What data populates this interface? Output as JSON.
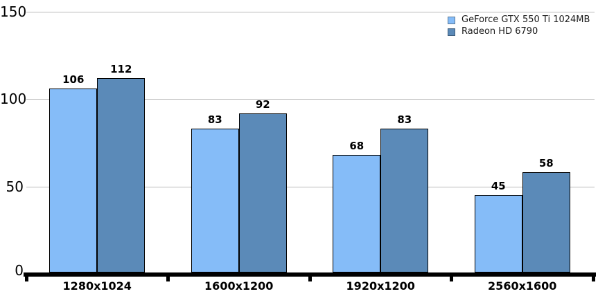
{
  "chart_data": {
    "type": "bar",
    "title": "",
    "categories": [
      "1280x1024",
      "1600x1200",
      "1920x1200",
      "2560x1600"
    ],
    "series": [
      {
        "name": "GeForce GTX 550 Ti 1024MB",
        "values": [
          106,
          83,
          68,
          45
        ],
        "color": "#85BCF8",
        "border_color": "#000000",
        "legend_swatch_border": "#5a7896"
      },
      {
        "name": "Radeon HD 6790",
        "values": [
          112,
          92,
          83,
          58
        ],
        "color": "#5B8AB8",
        "border_color": "#000000",
        "legend_swatch_border": "#3c5a78"
      }
    ],
    "xlabel": "",
    "ylabel": "",
    "ylim": [
      0,
      150
    ],
    "yticks": [
      0,
      50,
      100,
      150
    ],
    "grid": "horizontal",
    "legend_position": "top-right",
    "value_labels": true
  },
  "colors": {
    "background": "#ffffff",
    "gridline": "#b9b9b9",
    "axis": "#000000",
    "text": "#000000",
    "legend_text": "#1a1a1a"
  }
}
